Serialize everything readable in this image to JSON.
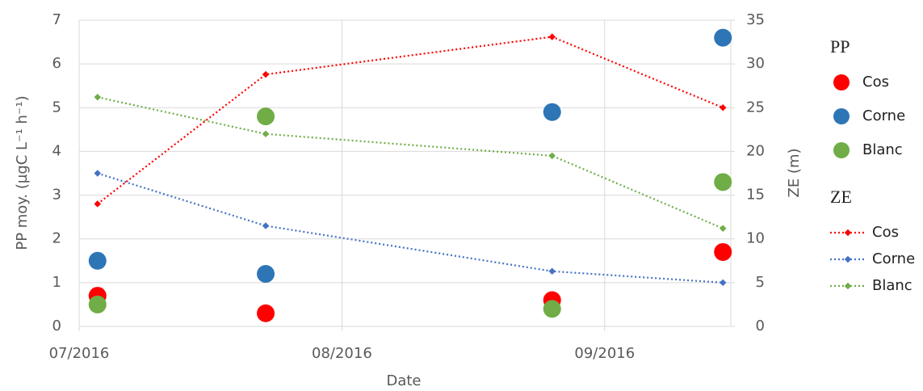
{
  "chart_data": {
    "type": "scatter-line",
    "x_label": "Date",
    "y_label": "PP moy. (µgC L⁻¹ h⁻¹)",
    "y2_label": "ZE (m)",
    "x": [
      7.07,
      7.71,
      8.8,
      9.45
    ],
    "xlim": [
      7,
      9.48
    ],
    "xticks": [
      {
        "value": 7,
        "label": "07/2016"
      },
      {
        "value": 8,
        "label": "08/2016"
      },
      {
        "value": 9,
        "label": "09/2016"
      }
    ],
    "ylim": [
      0,
      7
    ],
    "yticks": [
      0,
      1,
      2,
      3,
      4,
      5,
      6,
      7
    ],
    "y2lim": [
      0,
      35
    ],
    "y2ticks": [
      0,
      5,
      10,
      15,
      20,
      25,
      30,
      35
    ],
    "grid": true,
    "series": [
      {
        "name": "Cos",
        "group": "PP",
        "kind": "scatter",
        "color": "#ff0000",
        "values": [
          0.7,
          0.3,
          0.6,
          1.7
        ]
      },
      {
        "name": "Corne",
        "group": "PP",
        "kind": "scatter",
        "color": "#2e75b6",
        "values": [
          1.5,
          1.2,
          4.9,
          6.6
        ]
      },
      {
        "name": "Blanc",
        "group": "PP",
        "kind": "scatter",
        "color": "#70ad47",
        "values": [
          0.5,
          4.8,
          0.4,
          3.3
        ]
      },
      {
        "name": "Cos",
        "group": "ZE",
        "kind": "line",
        "axis": "y2",
        "color": "#ff0000",
        "values": [
          14,
          28.8,
          33.1,
          25
        ]
      },
      {
        "name": "Corne",
        "group": "ZE",
        "kind": "line",
        "axis": "y2",
        "color": "#4472c4",
        "values": [
          17.5,
          11.5,
          6.3,
          5
        ]
      },
      {
        "name": "Blanc",
        "group": "ZE",
        "kind": "line",
        "axis": "y2",
        "color": "#70ad47",
        "values": [
          26.2,
          22,
          19.5,
          11.2
        ]
      }
    ]
  }
}
